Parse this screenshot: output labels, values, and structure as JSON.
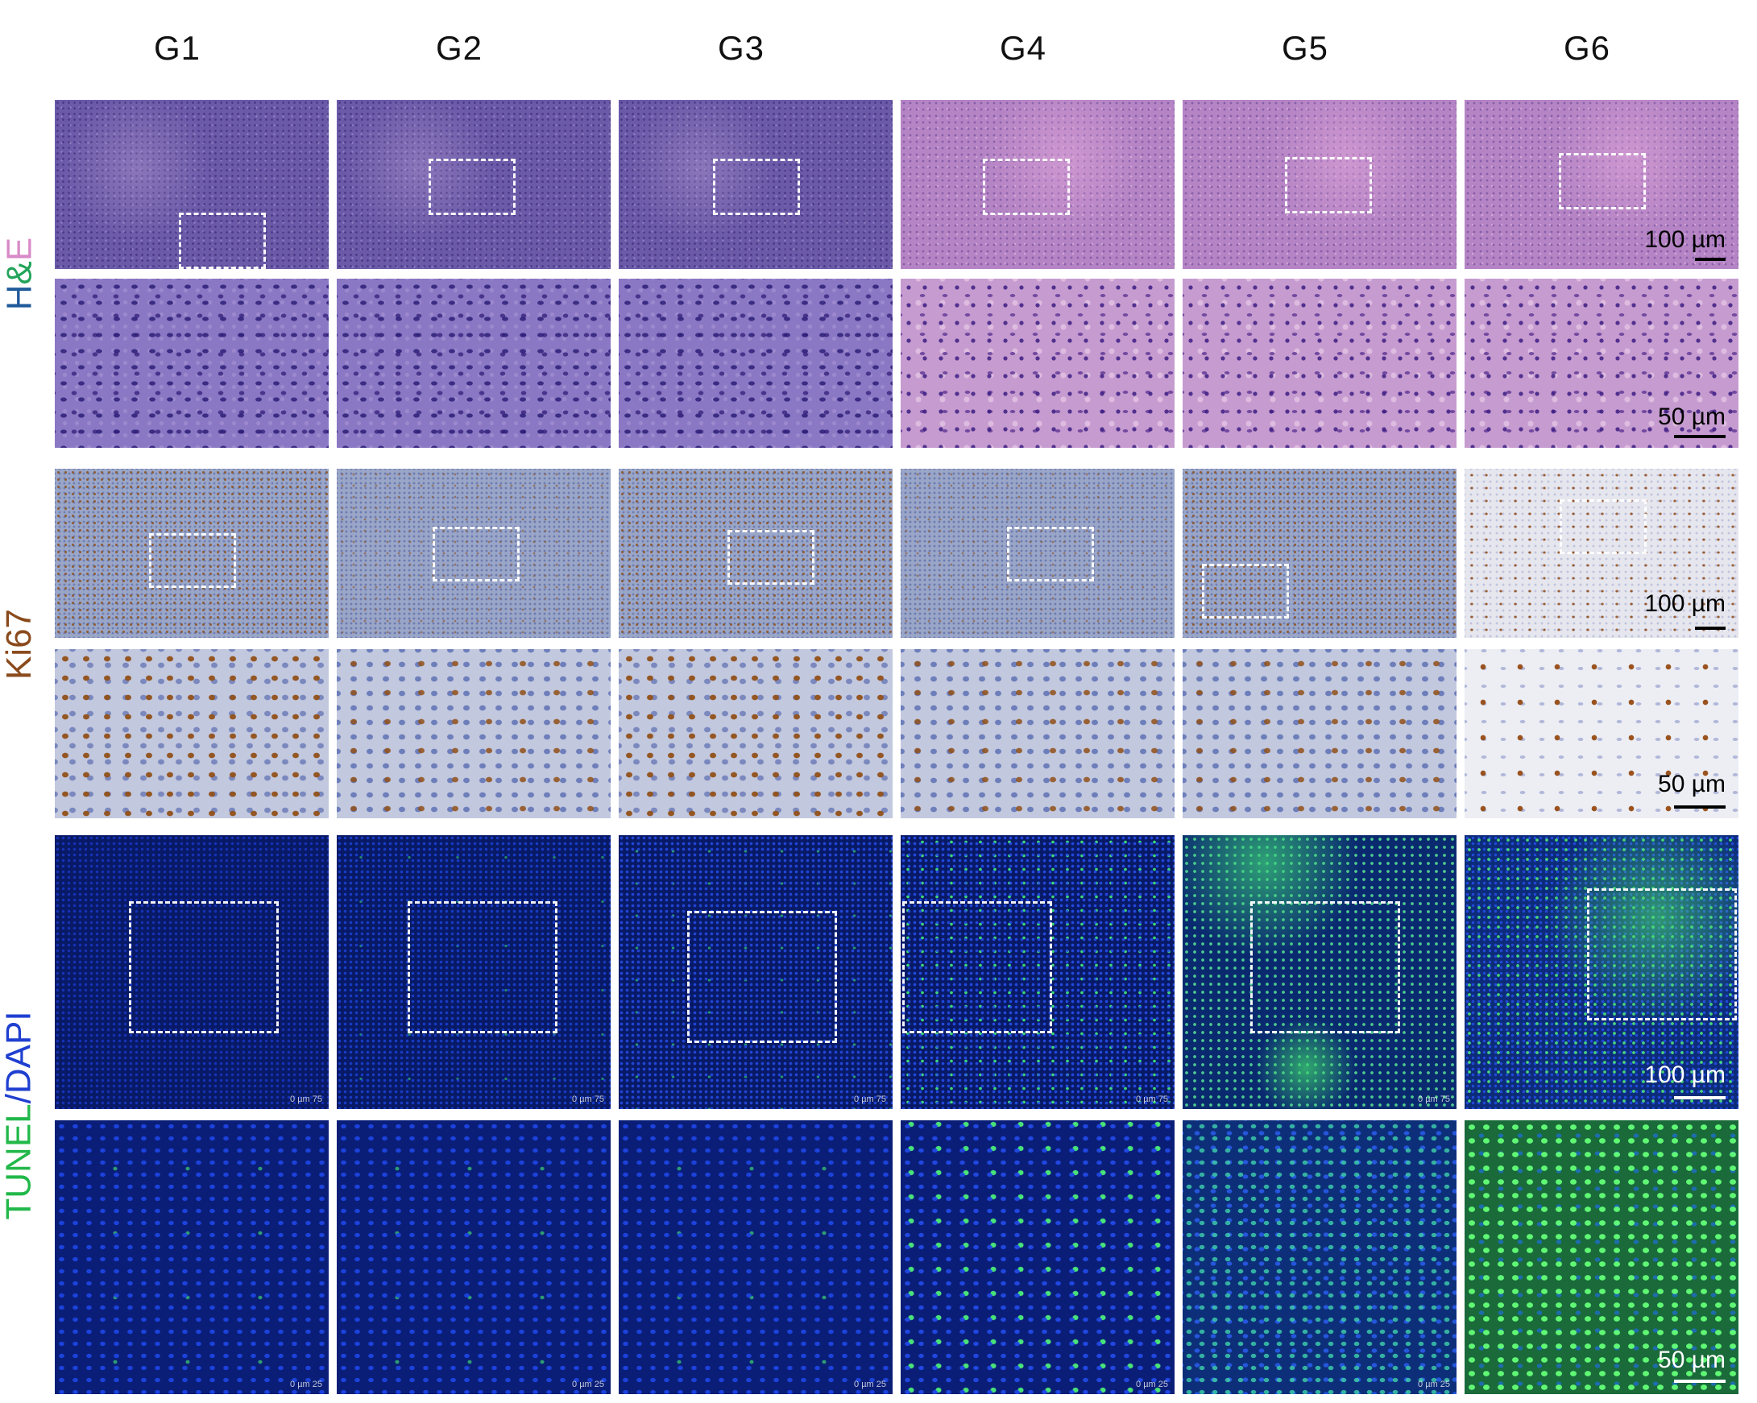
{
  "columns": [
    "G1",
    "G2",
    "G3",
    "G4",
    "G5",
    "G6"
  ],
  "row_labels": {
    "he": {
      "h": "H",
      "amp": "&",
      "e": "E"
    },
    "ki67": "Ki67",
    "tunel": {
      "a": "TUNEL",
      "slash": "/",
      "b": "DAPI"
    }
  },
  "scale_bars": {
    "he_low": "100 µm",
    "he_high": "50 µm",
    "ki_low": "100 µm",
    "ki_high": "50 µm",
    "tunel_low": "100 µm",
    "tunel_high": "50 µm"
  },
  "microscope_marks": {
    "tunel_low": "0 µm 75",
    "tunel_high": "0 µm 25"
  },
  "colors": {
    "h_label": "#1f5a9a",
    "amp_label": "#22a35a",
    "e_label": "#d88ac8",
    "ki67_label": "#8a4a1c",
    "tunel_label": "#22b84a",
    "dapi_label": "#1f3fd0",
    "scale_bar_dark": "#000000",
    "scale_bar_light": "#ffffff"
  }
}
